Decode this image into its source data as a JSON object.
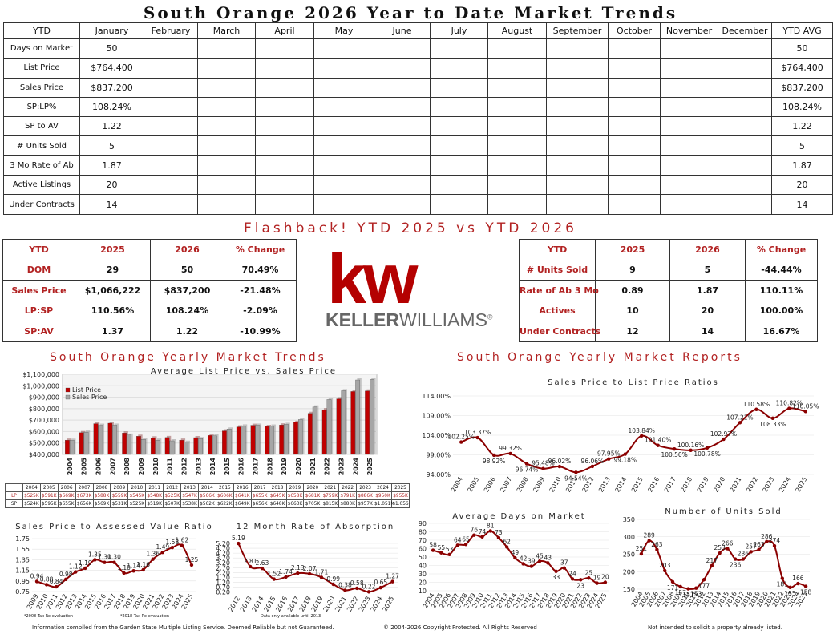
{
  "title": "South Orange 2026 Year to Date Market Trends",
  "ytd_table": {
    "headers": [
      "YTD",
      "January",
      "February",
      "March",
      "April",
      "May",
      "June",
      "July",
      "August",
      "September",
      "October",
      "November",
      "December",
      "YTD AVG"
    ],
    "rows": [
      {
        "label": "Days on Market",
        "january": "50",
        "avg": "50"
      },
      {
        "label": "List Price",
        "january": "$764,400",
        "avg": "$764,400"
      },
      {
        "label": "Sales Price",
        "january": "$837,200",
        "avg": "$837,200"
      },
      {
        "label": "SP:LP%",
        "january": "108.24%",
        "avg": "108.24%"
      },
      {
        "label": "SP to AV",
        "january": "1.22",
        "avg": "1.22"
      },
      {
        "label": "# Units Sold",
        "january": "5",
        "avg": "5"
      },
      {
        "label": "3 Mo Rate of Ab",
        "january": "1.87",
        "avg": "1.87"
      },
      {
        "label": "Active Listings",
        "january": "20",
        "avg": "20"
      },
      {
        "label": "Under Contracts",
        "january": "14",
        "avg": "14"
      }
    ]
  },
  "flashback_title": "Flashback!  YTD 2025 vs YTD 2026",
  "compare_left": {
    "headers": [
      "YTD",
      "2025",
      "2026",
      "% Change"
    ],
    "rows": [
      [
        "DOM",
        "29",
        "50",
        "70.49%"
      ],
      [
        "Sales Price",
        "$1,066,222",
        "$837,200",
        "-21.48%"
      ],
      [
        "LP:SP",
        "110.56%",
        "108.24%",
        "-2.09%"
      ],
      [
        "SP:AV",
        "1.37",
        "1.22",
        "-10.99%"
      ]
    ]
  },
  "compare_right": {
    "headers": [
      "YTD",
      "2025",
      "2026",
      "% Change"
    ],
    "rows": [
      [
        "# Units Sold",
        "9",
        "5",
        "-44.44%"
      ],
      [
        "Rate of Ab 3 Mo",
        "0.89",
        "1.87",
        "110.11%"
      ],
      [
        "Actives",
        "10",
        "20",
        "100.00%"
      ],
      [
        "Under Contracts",
        "12",
        "14",
        "16.67%"
      ]
    ]
  },
  "logo": {
    "mark": "kw",
    "name_bold": "KELLER",
    "name_light": "WILLIAMS",
    "reg": "®",
    "color": "#b40101"
  },
  "section_left": "South Orange Yearly Market Trends",
  "section_right": "South Orange Yearly Market Reports",
  "colors": {
    "accent": "#b22222",
    "list_bar": "#c00000",
    "sales_bar": "#a6a6a6"
  },
  "chart_data": [
    {
      "type": "bar",
      "title": "Average List Price vs. Sales Price",
      "categories": [
        "2004",
        "2005",
        "2006",
        "2007",
        "2008",
        "2009",
        "2010",
        "2011",
        "2012",
        "2013",
        "2014",
        "2015",
        "2016",
        "2017",
        "2018",
        "2019",
        "2020",
        "2021",
        "2022",
        "2023",
        "2024",
        "2025"
      ],
      "series": [
        {
          "name": "List Price",
          "values": [
            525000,
            591000,
            669000,
            673000,
            588000,
            559000,
            545000,
            548000,
            525000,
            547000,
            566000,
            606000,
            641000,
            655000,
            645000,
            658000,
            681000,
            759000,
            791000,
            886000,
            950000,
            955000
          ]
        },
        {
          "name": "Sales Price",
          "values": [
            524000,
            595000,
            655000,
            656000,
            569000,
            531000,
            525000,
            519000,
            507000,
            538000,
            562000,
            622000,
            649000,
            656000,
            648000,
            663000,
            705000,
            815000,
            880000,
            957000,
            1051000,
            1056000
          ]
        }
      ],
      "ylim": [
        400000,
        1100000
      ],
      "yticks": [
        "$400,000",
        "$500,000",
        "$600,000",
        "$700,000",
        "$800,000",
        "$900,000",
        "$1,000,000",
        "$1,100,000"
      ],
      "legend": "top-left",
      "table": {
        "years": [
          "2004",
          "2005",
          "2006",
          "2007",
          "2008",
          "2009",
          "2010",
          "2011",
          "2012",
          "2013",
          "2014",
          "2015",
          "2016",
          "2017",
          "2018",
          "2019",
          "2020",
          "2021",
          "2022",
          "2023",
          "2024",
          "2025"
        ],
        "lp_label": "LP",
        "sp_label": "SP",
        "lp": [
          "$525K",
          "$591K",
          "$669K",
          "$673K",
          "$588K",
          "$559K",
          "$545K",
          "$548K",
          "$525K",
          "$547K",
          "$566K",
          "$606K",
          "$641K",
          "$655K",
          "$645K",
          "$658K",
          "$681K",
          "$759K",
          "$791K",
          "$886K",
          "$950K",
          "$955K"
        ],
        "sp": [
          "$524K",
          "$595K",
          "$655K",
          "$656K",
          "$569K",
          "$531K",
          "$525K",
          "$519K",
          "$507K",
          "$538K",
          "$562K",
          "$622K",
          "$649K",
          "$656K",
          "$648K",
          "$663K",
          "$705K",
          "$815K",
          "$880K",
          "$957K",
          "$1.051M",
          "$1.056"
        ]
      }
    },
    {
      "type": "line",
      "title": "Sales Price to List Price Ratios",
      "x": [
        "2004",
        "2005",
        "2006",
        "2007",
        "2008",
        "2009",
        "2010",
        "2011",
        "2012",
        "2013",
        "2014",
        "2015",
        "2016",
        "2017",
        "2018",
        "2019",
        "2020",
        "2021",
        "2022",
        "2023",
        "2024",
        "2025"
      ],
      "values": [
        102.25,
        103.37,
        98.92,
        99.32,
        96.74,
        95.48,
        96.02,
        94.54,
        96.06,
        97.95,
        99.18,
        103.84,
        101.4,
        100.5,
        100.16,
        100.78,
        102.97,
        107.21,
        110.58,
        108.33,
        110.82,
        110.05
      ],
      "labels": [
        "102.25%",
        "103.37%",
        "98.92%",
        "99.32%",
        "96.74%",
        "95.48%",
        "96.02%",
        "94.54%",
        "96.06%",
        "97.95%",
        "99.18%",
        "103.84%",
        "101.40%",
        "100.50%",
        "100.16%",
        "100.78%",
        "102.97%",
        "107.21%",
        "110.58%",
        "108.33%",
        "110.82%",
        "110.05%"
      ],
      "ylim": [
        94,
        114
      ],
      "yticks": [
        "94.00%",
        "99.00%",
        "104.00%",
        "109.00%",
        "114.00%"
      ]
    },
    {
      "type": "line",
      "title": "Sales Price to Assessed Value Ratio",
      "x": [
        "2009",
        "2010",
        "2011",
        "2012",
        "2013",
        "2014",
        "2015",
        "2016",
        "2017",
        "2018",
        "2019",
        "2020",
        "2021",
        "2022",
        "2023",
        "2024",
        "2025"
      ],
      "values": [
        0.94,
        0.88,
        0.84,
        0.98,
        1.12,
        1.19,
        1.35,
        1.3,
        1.3,
        1.1,
        1.14,
        1.16,
        1.36,
        1.49,
        1.58,
        1.62,
        1.25
      ],
      "labels": [
        "0.94",
        "0.88",
        "0.84",
        "0.98",
        "1.12",
        "1.19",
        "1.35",
        "1.30",
        "1.30",
        "1.10",
        "1.14",
        "1.16",
        "1.36",
        "1.49",
        "1.58",
        "1.62",
        "1.25"
      ],
      "ylim": [
        0.75,
        1.75
      ],
      "yticks": [
        "0.75",
        "0.95",
        "1.15",
        "1.35",
        "1.55",
        "1.75"
      ],
      "notes": [
        "*2008 Tax Re-evaluation",
        "*2018 Tax Re-evaluation"
      ]
    },
    {
      "type": "line",
      "title": "12 Month Rate of Absorption",
      "x": [
        "2012",
        "2013",
        "2014",
        "2015",
        "2016",
        "2017",
        "2018",
        "2019",
        "2020",
        "2021",
        "2022",
        "2023",
        "2024",
        "2025"
      ],
      "values": [
        5.19,
        2.81,
        2.63,
        1.52,
        1.74,
        2.13,
        2.07,
        1.71,
        0.99,
        0.38,
        0.58,
        0.22,
        0.65,
        1.27
      ],
      "labels": [
        "5.19",
        "2.81",
        "2.63",
        "1.52",
        "1.74",
        "2.13",
        "2.07",
        "1.71",
        "0.99",
        "0.38",
        "0.58",
        "0.22",
        "0.65",
        "1.27"
      ],
      "ylim": [
        0,
        5.2
      ],
      "yticks": [
        "0.20",
        "0.70",
        "1.20",
        "1.70",
        "2.20",
        "2.70",
        "3.20",
        "3.70",
        "4.20",
        "4.70",
        "5.20"
      ],
      "note": "Data only available until 2013"
    },
    {
      "type": "line",
      "title": "Average Days on Market",
      "x": [
        "2004",
        "2005",
        "2006",
        "2007",
        "2008",
        "2009",
        "2010",
        "2011",
        "2012",
        "2013",
        "2014",
        "2015",
        "2016",
        "2017",
        "2018",
        "2019",
        "2020",
        "2021",
        "2022",
        "2023",
        "2024",
        "2025"
      ],
      "values": [
        58,
        55,
        53,
        64,
        65,
        76,
        74,
        81,
        73,
        62,
        49,
        42,
        39,
        45,
        43,
        33,
        37,
        24,
        23,
        25,
        19,
        20
      ],
      "labels": [
        "58",
        "55",
        "53",
        "64",
        "65",
        "76",
        "74",
        "81",
        "73",
        "62",
        "49",
        "42",
        "39",
        "45",
        "43",
        "33",
        "37",
        "24",
        "23",
        "25",
        "19",
        "20"
      ],
      "ylim": [
        10,
        90
      ],
      "yticks": [
        "10",
        "20",
        "30",
        "40",
        "50",
        "60",
        "70",
        "80",
        "90"
      ]
    },
    {
      "type": "line",
      "title": "Number of Units Sold",
      "x": [
        "2004",
        "2005",
        "2006",
        "2007",
        "2008",
        "2009",
        "2010",
        "2011",
        "2012",
        "2013",
        "2014",
        "2015",
        "2016",
        "2017",
        "2018",
        "2019",
        "2020",
        "2021",
        "2022",
        "2023",
        "2024",
        "2025"
      ],
      "values": [
        251,
        289,
        263,
        203,
        171,
        157,
        151,
        153,
        177,
        217,
        253,
        266,
        236,
        236,
        257,
        263,
        286,
        274,
        181,
        155,
        166,
        158
      ],
      "labels": [
        "251",
        "289",
        "263",
        "203",
        "171",
        "157",
        "151",
        "153",
        "177",
        "217",
        "253",
        "266",
        "236",
        "236",
        "257",
        "263",
        "286",
        "274",
        "181",
        "155",
        "166",
        "158"
      ],
      "ylim": [
        150,
        350
      ],
      "yticks": [
        "150",
        "200",
        "250",
        "300",
        "350"
      ]
    }
  ],
  "footer": {
    "left": "Information compiled from the Garden State Multiple Listing Service.  Deemed Reliable but not Guaranteed.",
    "center": "© 2004-2026 Copyright Protected.  All Rights Reserved",
    "right": "Not intended to solicit a property already listed."
  }
}
